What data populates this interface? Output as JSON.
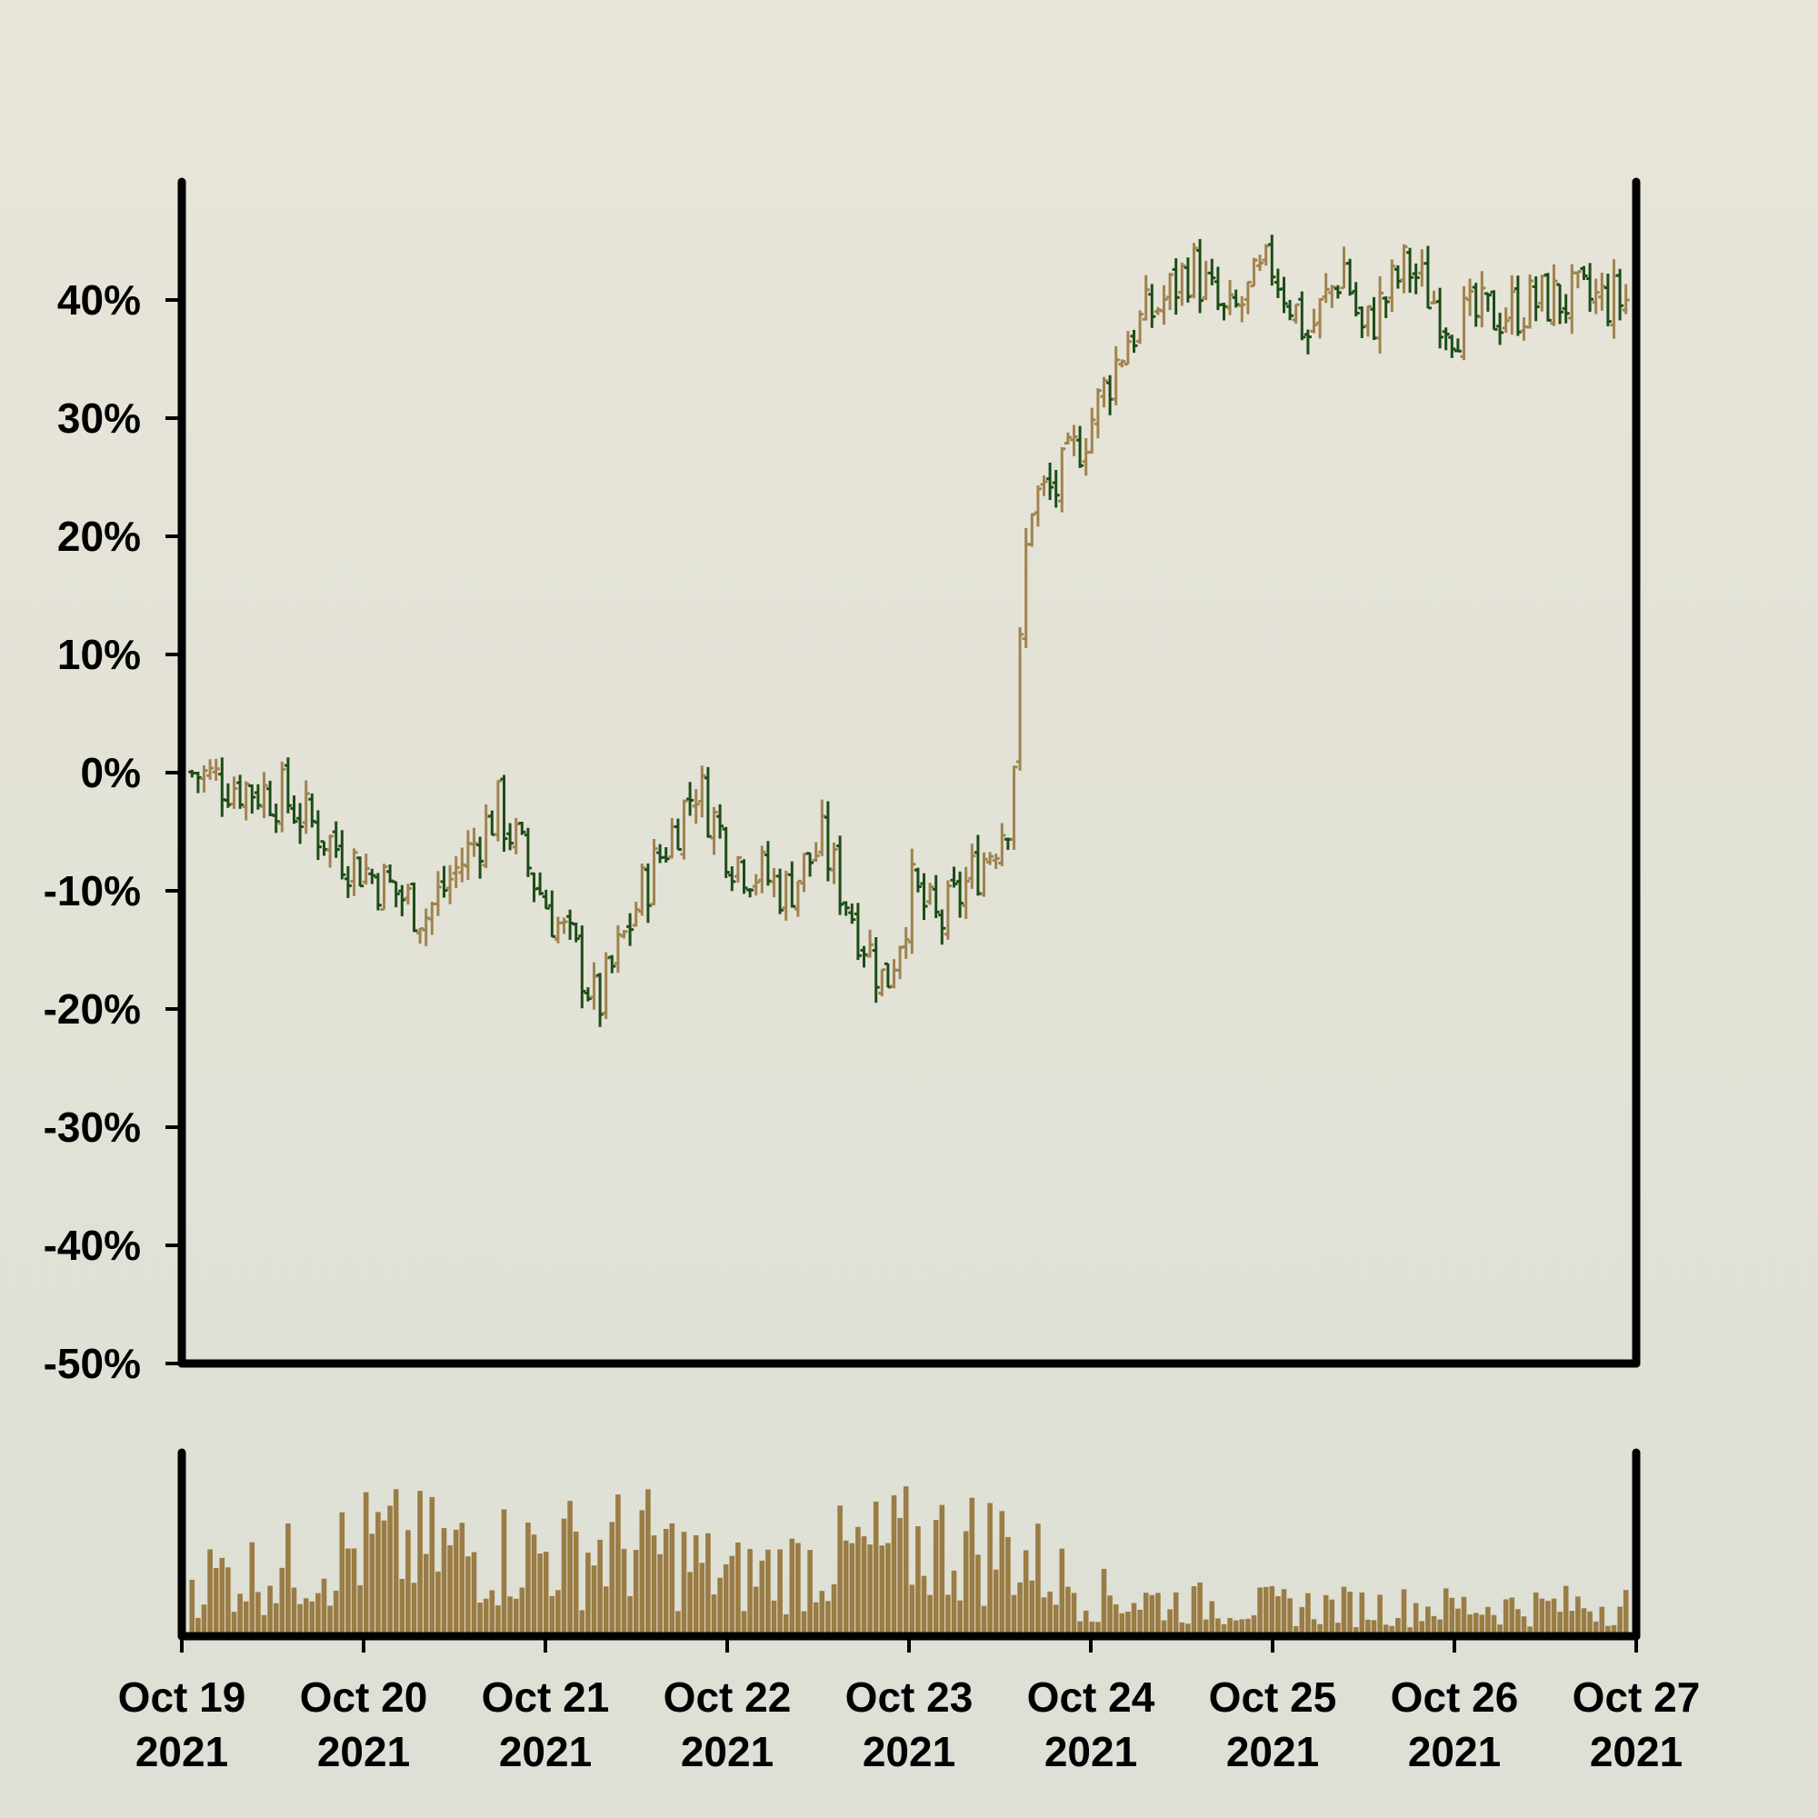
{
  "chart_data": {
    "type": "ohlc",
    "title": "",
    "xlabel": "",
    "ylabel": "",
    "grid": false,
    "legend": "none",
    "colors": {
      "up": "#a0834e",
      "down": "#1d4d16",
      "volume": "#9a7c44",
      "axis": "#000000",
      "background": "#e4e2d8"
    },
    "x_range": [
      "2021-10-19",
      "2021-10-27"
    ],
    "ylim": [
      -0.5,
      0.5
    ],
    "ytick_labels": [
      "40%",
      "30%",
      "20%",
      "10%",
      "0%",
      "-10%",
      "-20%",
      "-30%",
      "-40%",
      "-50%"
    ],
    "ytick_values": [
      0.4,
      0.3,
      0.2,
      0.1,
      0.0,
      -0.1,
      -0.2,
      -0.3,
      -0.4,
      -0.5
    ],
    "xtick_labels": [
      [
        "Oct 19",
        "2021"
      ],
      [
        "Oct 20",
        "2021"
      ],
      [
        "Oct 21",
        "2021"
      ],
      [
        "Oct 22",
        "2021"
      ],
      [
        "Oct 23",
        "2021"
      ],
      [
        "Oct 24",
        "2021"
      ],
      [
        "Oct 25",
        "2021"
      ],
      [
        "Oct 26",
        "2021"
      ],
      [
        "Oct 27",
        "2021"
      ]
    ],
    "bars_per_day": 30,
    "close_path": [
      [
        0,
        0.0
      ],
      [
        1.0,
        -0.02
      ],
      [
        1.7,
        -0.07
      ],
      [
        2.6,
        -0.12
      ],
      [
        3.4,
        -0.03
      ],
      [
        4.0,
        -0.12
      ],
      [
        4.3,
        -0.16
      ],
      [
        4.5,
        -0.2
      ],
      [
        5.0,
        -0.1
      ],
      [
        5.6,
        -0.01
      ],
      [
        6.0,
        -0.07
      ],
      [
        6.6,
        -0.1
      ],
      [
        7.0,
        -0.06
      ],
      [
        7.4,
        -0.13
      ],
      [
        7.7,
        -0.18
      ],
      [
        8.0,
        -0.1
      ],
      [
        8.3,
        -0.13
      ],
      [
        8.9,
        -0.06
      ],
      [
        9.1,
        -0.03
      ],
      [
        9.3,
        0.23
      ],
      [
        9.6,
        0.24
      ],
      [
        10.0,
        0.3
      ],
      [
        10.4,
        0.37
      ],
      [
        10.8,
        0.4
      ],
      [
        11.1,
        0.43
      ],
      [
        11.5,
        0.38
      ],
      [
        12.0,
        0.43
      ],
      [
        12.4,
        0.37
      ],
      [
        12.8,
        0.43
      ],
      [
        13.0,
        0.37
      ],
      [
        13.5,
        0.43
      ],
      [
        14.0,
        0.38
      ],
      [
        14.6,
        0.39
      ],
      [
        15.0,
        0.4
      ],
      [
        15.5,
        0.4
      ],
      [
        16.0,
        0.4
      ]
    ],
    "volume_profile": [
      [
        0,
        0.35
      ],
      [
        1,
        0.4
      ],
      [
        2,
        0.55
      ],
      [
        3,
        0.5
      ],
      [
        4,
        0.5
      ],
      [
        5,
        0.55
      ],
      [
        6,
        0.35
      ],
      [
        7,
        0.45
      ],
      [
        8,
        0.55
      ],
      [
        9,
        0.55
      ],
      [
        10,
        0.25
      ],
      [
        11,
        0.2
      ],
      [
        12,
        0.18
      ],
      [
        13,
        0.18
      ],
      [
        14,
        0.18
      ],
      [
        15,
        0.18
      ],
      [
        16,
        0.2
      ]
    ],
    "volume_ylim": [
      0,
      1
    ]
  }
}
